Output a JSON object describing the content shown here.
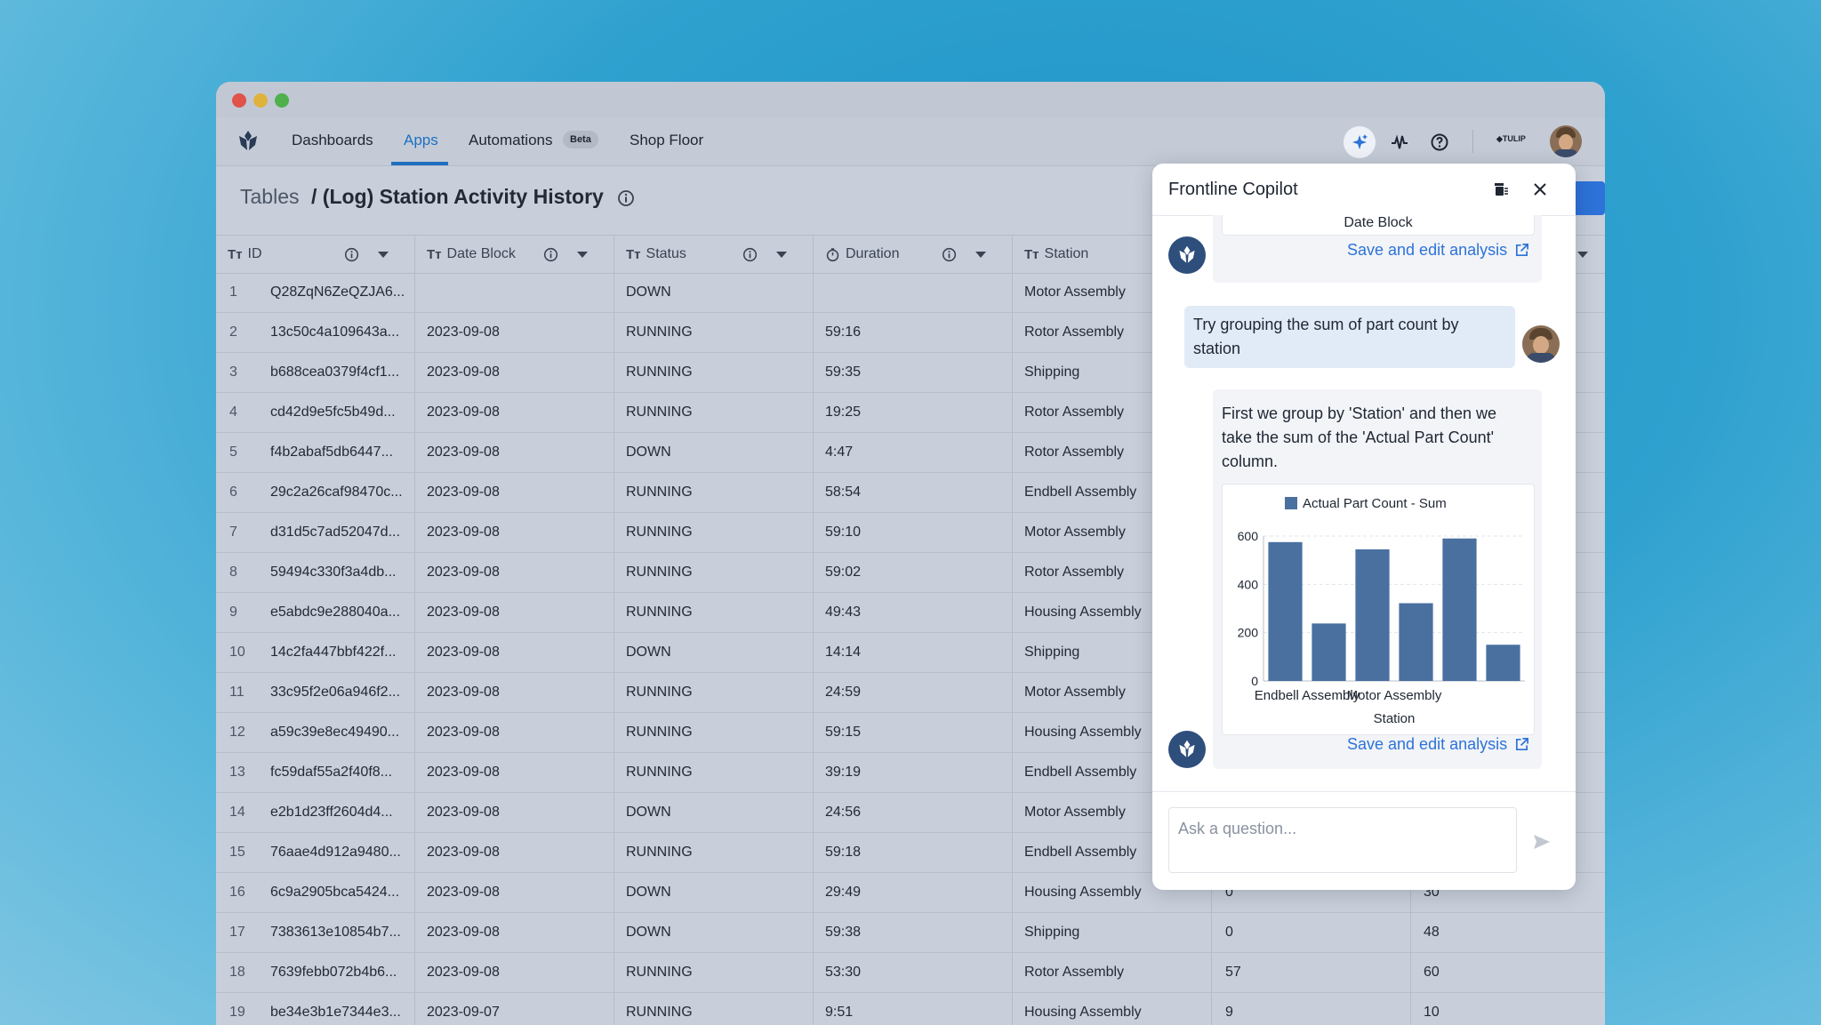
{
  "nav": {
    "items": [
      {
        "label": "Dashboards"
      },
      {
        "label": "Apps"
      },
      {
        "label": "Automations"
      },
      {
        "label": "Shop Floor"
      }
    ],
    "beta_badge": "Beta",
    "brand_small": "TULIP"
  },
  "breadcrumb": {
    "root": "Tables",
    "title": "/ (Log) Station Activity History"
  },
  "table": {
    "type_prefix": "Tт",
    "columns": [
      "ID",
      "Date Block",
      "Status",
      "Duration",
      "Station"
    ],
    "rows": [
      {
        "n": "1",
        "id": "Q28ZqN6ZeQZJA6...",
        "date": "",
        "status": "DOWN",
        "duration": "",
        "station": "Motor Assembly",
        "c6": "",
        "c7": ""
      },
      {
        "n": "2",
        "id": "13c50c4a109643a...",
        "date": "2023-09-08",
        "status": "RUNNING",
        "duration": "59:16",
        "station": "Rotor Assembly",
        "c6": "",
        "c7": ""
      },
      {
        "n": "3",
        "id": "b688cea0379f4cf1...",
        "date": "2023-09-08",
        "status": "RUNNING",
        "duration": "59:35",
        "station": "Shipping",
        "c6": "",
        "c7": ""
      },
      {
        "n": "4",
        "id": "cd42d9e5fc5b49d...",
        "date": "2023-09-08",
        "status": "RUNNING",
        "duration": "19:25",
        "station": "Rotor Assembly",
        "c6": "",
        "c7": ""
      },
      {
        "n": "5",
        "id": "f4b2abaf5db6447...",
        "date": "2023-09-08",
        "status": "DOWN",
        "duration": "4:47",
        "station": "Rotor Assembly",
        "c6": "",
        "c7": ""
      },
      {
        "n": "6",
        "id": "29c2a26caf98470c...",
        "date": "2023-09-08",
        "status": "RUNNING",
        "duration": "58:54",
        "station": "Endbell Assembly",
        "c6": "",
        "c7": ""
      },
      {
        "n": "7",
        "id": "d31d5c7ad52047d...",
        "date": "2023-09-08",
        "status": "RUNNING",
        "duration": "59:10",
        "station": "Motor Assembly",
        "c6": "",
        "c7": ""
      },
      {
        "n": "8",
        "id": "59494c330f3a4db...",
        "date": "2023-09-08",
        "status": "RUNNING",
        "duration": "59:02",
        "station": "Rotor Assembly",
        "c6": "",
        "c7": ""
      },
      {
        "n": "9",
        "id": "e5abdc9e288040a...",
        "date": "2023-09-08",
        "status": "RUNNING",
        "duration": "49:43",
        "station": "Housing Assembly",
        "c6": "",
        "c7": ""
      },
      {
        "n": "10",
        "id": "14c2fa447bbf422f...",
        "date": "2023-09-08",
        "status": "DOWN",
        "duration": "14:14",
        "station": "Shipping",
        "c6": "",
        "c7": ""
      },
      {
        "n": "11",
        "id": "33c95f2e06a946f2...",
        "date": "2023-09-08",
        "status": "RUNNING",
        "duration": "24:59",
        "station": "Motor Assembly",
        "c6": "",
        "c7": ""
      },
      {
        "n": "12",
        "id": "a59c39e8ec49490...",
        "date": "2023-09-08",
        "status": "RUNNING",
        "duration": "59:15",
        "station": "Housing Assembly",
        "c6": "",
        "c7": ""
      },
      {
        "n": "13",
        "id": "fc59daf55a2f40f8...",
        "date": "2023-09-08",
        "status": "RUNNING",
        "duration": "39:19",
        "station": "Endbell Assembly",
        "c6": "",
        "c7": ""
      },
      {
        "n": "14",
        "id": "e2b1d23ff2604d4...",
        "date": "2023-09-08",
        "status": "DOWN",
        "duration": "24:56",
        "station": "Motor Assembly",
        "c6": "",
        "c7": ""
      },
      {
        "n": "15",
        "id": "76aae4d912a9480...",
        "date": "2023-09-08",
        "status": "RUNNING",
        "duration": "59:18",
        "station": "Endbell Assembly",
        "c6": "",
        "c7": ""
      },
      {
        "n": "16",
        "id": "6c9a2905bca5424...",
        "date": "2023-09-08",
        "status": "DOWN",
        "duration": "29:49",
        "station": "Housing Assembly",
        "c6": "0",
        "c7": "30"
      },
      {
        "n": "17",
        "id": "7383613e10854b7...",
        "date": "2023-09-08",
        "status": "DOWN",
        "duration": "59:38",
        "station": "Shipping",
        "c6": "0",
        "c7": "48"
      },
      {
        "n": "18",
        "id": "7639febb072b4b6...",
        "date": "2023-09-08",
        "status": "RUNNING",
        "duration": "53:30",
        "station": "Rotor Assembly",
        "c6": "57",
        "c7": "60"
      },
      {
        "n": "19",
        "id": "be34e3b1e7344e3...",
        "date": "2023-09-07",
        "status": "RUNNING",
        "duration": "9:51",
        "station": "Housing Assembly",
        "c6": "9",
        "c7": "10"
      }
    ]
  },
  "copilot": {
    "title": "Frontline Copilot",
    "prev_card_label": "Date Block",
    "save_link": "Save and edit analysis",
    "user_message": "Try grouping the sum of part count by station",
    "bot_message": "First we group by 'Station' and then we take the sum of the 'Actual Part Count' column.",
    "input_placeholder": "Ask a question..."
  },
  "colors": {
    "accent": "#2d72d9",
    "bar": "#4a70a0",
    "bot_avatar": "#2e4f7c"
  },
  "chart_data": {
    "type": "bar",
    "legend": "Actual Part Count - Sum",
    "xlabel": "Station",
    "ylabel": "",
    "categories": [
      "Endbell Assembly",
      "",
      "Motor Assembly",
      "",
      "",
      ""
    ],
    "values": [
      575,
      238,
      545,
      322,
      590,
      150
    ],
    "yticks": [
      0,
      200,
      400,
      600
    ],
    "ylim": [
      0,
      600
    ],
    "grid": true,
    "legend_position": "top"
  }
}
